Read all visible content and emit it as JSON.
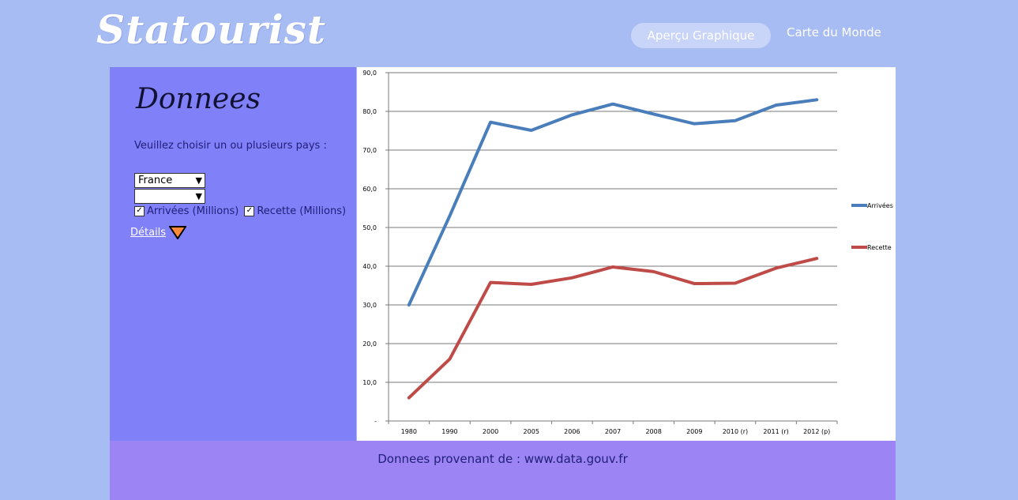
{
  "header": {
    "logo": "Statourist",
    "nav": {
      "active": "Aperçu Graphique",
      "other": "Carte du Monde"
    }
  },
  "panel": {
    "title": "Donnees",
    "prompt": "Veuillez choisir un ou plusieurs pays :",
    "country_select_1": "France",
    "country_select_2": "",
    "check_arrivees": "Arrivées (Millions)",
    "check_recette": "Recette (Millions)",
    "details_link": "Détails"
  },
  "footer": {
    "source": "Donnees provenant de : www.data.gouv.fr"
  },
  "chart_data": {
    "type": "line",
    "categories": [
      "1980",
      "1990",
      "2000",
      "2005",
      "2006",
      "2007",
      "2008",
      "2009",
      "2010 (r)",
      "2011 (r)",
      "2012 (p)"
    ],
    "y_ticks": [
      "-",
      "10,0",
      "20,0",
      "30,0",
      "40,0",
      "50,0",
      "60,0",
      "70,0",
      "80,0",
      "90,0"
    ],
    "ylim": [
      0,
      90
    ],
    "grid": true,
    "legend_position": "right",
    "series": [
      {
        "name": "Arrivées",
        "color": "#4a7ebb",
        "values": [
          30.0,
          53.0,
          77.2,
          75.1,
          79.1,
          81.9,
          79.3,
          76.8,
          77.6,
          81.6,
          83.0
        ]
      },
      {
        "name": "Recette",
        "color": "#be4b48",
        "values": [
          6.0,
          16.0,
          35.8,
          35.3,
          37.0,
          39.8,
          38.6,
          35.5,
          35.6,
          39.5,
          42.0
        ]
      }
    ]
  }
}
